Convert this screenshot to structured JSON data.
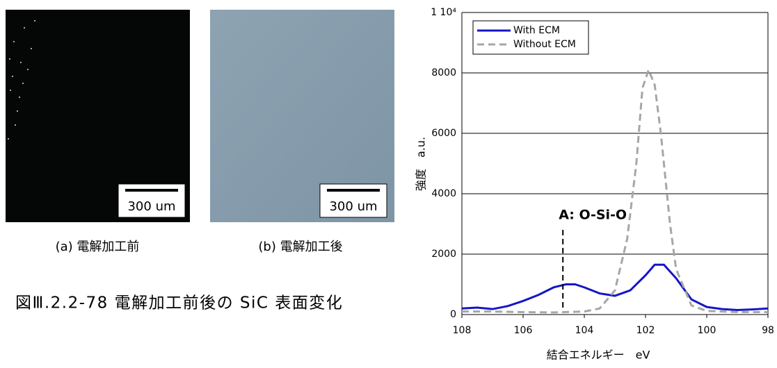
{
  "figure": {
    "panels": [
      {
        "scale_bar": "300 um",
        "caption": "(a) 電解加工前"
      },
      {
        "scale_bar": "300 um",
        "caption": "(b) 電解加工後"
      }
    ],
    "caption": "図Ⅲ.2.2-78 電解加工前後の SiC 表面変化"
  },
  "chart_data": {
    "type": "line",
    "xlabel": "結合エネルギー　eV",
    "ylabel": "強度　a.u.",
    "xlim": [
      108,
      98
    ],
    "xticks": [
      108,
      106,
      104,
      102,
      100,
      98
    ],
    "ylim": [
      0,
      10000
    ],
    "yticks": [
      0,
      2000,
      4000,
      6000,
      8000,
      {
        "value": 10000,
        "label": "1 10⁴"
      }
    ],
    "grid": true,
    "legend": "top-left",
    "annotation": {
      "text": "A: O-Si-O",
      "x": 104.7
    },
    "series": [
      {
        "name": "With ECM",
        "color": "#1515c8",
        "dash": false,
        "x": [
          108,
          107.5,
          107,
          106.5,
          106,
          105.5,
          105,
          104.6,
          104.3,
          104,
          103.5,
          103,
          102.5,
          102,
          101.7,
          101.4,
          101,
          100.5,
          100,
          99.5,
          99,
          98.5,
          98
        ],
        "values": [
          200,
          230,
          180,
          280,
          450,
          650,
          900,
          1000,
          1000,
          900,
          700,
          620,
          800,
          1300,
          1650,
          1650,
          1200,
          500,
          250,
          180,
          150,
          170,
          200
        ]
      },
      {
        "name": "Without ECM",
        "color": "#a6a6a6",
        "dash": true,
        "x": [
          108,
          107,
          106,
          105,
          104,
          103.5,
          103,
          102.6,
          102.3,
          102.1,
          101.9,
          101.7,
          101.5,
          101.2,
          101,
          100.5,
          100,
          99,
          98
        ],
        "values": [
          100,
          100,
          80,
          70,
          100,
          200,
          800,
          2500,
          5000,
          7500,
          8100,
          7600,
          6000,
          3000,
          1500,
          300,
          120,
          80,
          80
        ]
      }
    ]
  }
}
